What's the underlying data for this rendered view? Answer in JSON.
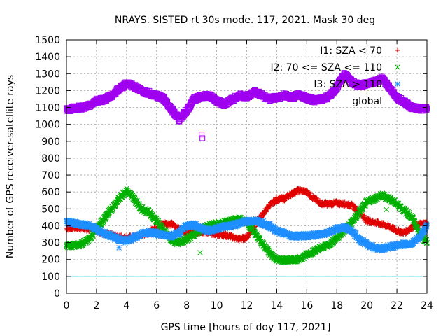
{
  "chart_data": {
    "type": "scatter",
    "title": "NRAYS. SISTED rt 30s mode. 117, 2021. Mask 30 deg",
    "xlabel": "GPS time [hours of doy 117, 2021]",
    "ylabel": "Number of GPS receiver-satellite rays",
    "xlim": [
      0,
      24
    ],
    "ylim": [
      0,
      1500
    ],
    "x_ticks": [
      "0",
      "2",
      "4",
      "6",
      "8",
      "10",
      "12",
      "14",
      "16",
      "18",
      "20",
      "22",
      "24"
    ],
    "y_ticks": [
      "0",
      "100",
      "200",
      "300",
      "400",
      "500",
      "600",
      "700",
      "800",
      "900",
      "1000",
      "1100",
      "1200",
      "1300",
      "1400",
      "1500"
    ],
    "grid": true,
    "legend_position": "top-right",
    "series": [
      {
        "name": "I1: SZA < 70",
        "marker": "+",
        "color": "#e00000",
        "x": [
          0,
          0.5,
          1,
          1.5,
          2,
          2.5,
          3,
          3.5,
          4,
          4.5,
          5,
          5.5,
          6,
          6.5,
          7,
          7.5,
          8,
          8.5,
          9,
          9.5,
          10,
          10.5,
          11,
          11.5,
          12,
          12.5,
          13,
          13.5,
          14,
          14.5,
          15,
          15.5,
          16,
          16.5,
          17,
          17.5,
          18,
          18.5,
          19,
          19.5,
          20,
          20.5,
          21,
          21.5,
          22,
          22.5,
          23,
          23.5,
          24
        ],
        "y": [
          385,
          390,
          385,
          380,
          370,
          355,
          345,
          335,
          330,
          335,
          345,
          360,
          390,
          415,
          410,
          380,
          360,
          360,
          365,
          360,
          350,
          345,
          335,
          320,
          330,
          400,
          460,
          520,
          555,
          560,
          590,
          610,
          600,
          560,
          530,
          530,
          535,
          530,
          520,
          480,
          430,
          420,
          410,
          395,
          370,
          360,
          390,
          410,
          415
        ]
      },
      {
        "name": "I2: 70 <= SZA <= 110",
        "marker": "x",
        "color": "#00b000",
        "x": [
          0,
          0.5,
          1,
          1.5,
          2,
          2.5,
          3,
          3.5,
          4,
          4.5,
          5,
          5.5,
          6,
          6.5,
          7,
          7.5,
          8,
          8.5,
          9,
          9.5,
          10,
          10.5,
          11,
          11.5,
          12,
          12.5,
          13,
          13.5,
          14,
          14.5,
          15,
          15.5,
          16,
          16.5,
          17,
          17.5,
          18,
          18.5,
          19,
          19.5,
          20,
          20.5,
          21,
          21.5,
          22,
          22.5,
          23,
          23.5,
          24
        ],
        "y": [
          280,
          285,
          290,
          320,
          380,
          440,
          500,
          560,
          610,
          560,
          500,
          480,
          430,
          370,
          310,
          300,
          320,
          350,
          380,
          400,
          410,
          420,
          430,
          440,
          420,
          360,
          300,
          240,
          200,
          195,
          200,
          200,
          230,
          250,
          270,
          290,
          330,
          370,
          420,
          480,
          540,
          560,
          580,
          560,
          530,
          490,
          450,
          360,
          300
        ]
      },
      {
        "name": "I3: SZA > 110",
        "marker": "*",
        "color": "#1f8fff",
        "x": [
          0,
          0.5,
          1,
          1.5,
          2,
          2.5,
          3,
          3.5,
          4,
          4.5,
          5,
          5.5,
          6,
          6.5,
          7,
          7.5,
          8,
          8.5,
          9,
          9.5,
          10,
          10.5,
          11,
          11.5,
          12,
          12.5,
          13,
          13.5,
          14,
          14.5,
          15,
          15.5,
          16,
          16.5,
          17,
          17.5,
          18,
          18.5,
          19,
          19.5,
          20,
          20.5,
          21,
          21.5,
          22,
          22.5,
          23,
          23.5,
          24
        ],
        "y": [
          420,
          415,
          410,
          400,
          380,
          355,
          340,
          320,
          310,
          330,
          350,
          360,
          355,
          345,
          340,
          360,
          400,
          405,
          385,
          370,
          380,
          395,
          400,
          415,
          425,
          430,
          420,
          400,
          370,
          355,
          340,
          340,
          340,
          345,
          350,
          365,
          380,
          390,
          370,
          320,
          290,
          270,
          265,
          275,
          285,
          290,
          295,
          330,
          400
        ]
      },
      {
        "name": "global",
        "marker": "square",
        "color": "#a000f0",
        "x": [
          0,
          0.5,
          1,
          1.5,
          2,
          2.5,
          3,
          3.5,
          4,
          4.5,
          5,
          5.5,
          6,
          6.5,
          7,
          7.5,
          8,
          8.5,
          9,
          9.5,
          10,
          10.5,
          11,
          11.5,
          12,
          12.5,
          13,
          13.5,
          14,
          14.5,
          15,
          15.5,
          16,
          16.5,
          17,
          17.5,
          18,
          18.5,
          19,
          19.5,
          20,
          20.5,
          21,
          21.5,
          22,
          22.5,
          23,
          23.5,
          24
        ],
        "y": [
          1085,
          1095,
          1100,
          1110,
          1140,
          1145,
          1170,
          1210,
          1240,
          1225,
          1200,
          1185,
          1170,
          1150,
          1090,
          1030,
          1080,
          1150,
          1165,
          1170,
          1140,
          1120,
          1145,
          1170,
          1165,
          1190,
          1175,
          1150,
          1160,
          1170,
          1160,
          1175,
          1155,
          1140,
          1150,
          1165,
          1220,
          1300,
          1250,
          1230,
          1240,
          1250,
          1270,
          1220,
          1160,
          1130,
          1100,
          1090,
          1095
        ]
      }
    ],
    "outliers": [
      {
        "series": "global",
        "x": 9.0,
        "y": 940
      },
      {
        "series": "global",
        "x": 9.05,
        "y": 918
      },
      {
        "series": "I3: SZA > 110",
        "x": 3.5,
        "y": 270
      },
      {
        "series": "I2: 70 <= SZA <= 110",
        "x": 8.9,
        "y": 240
      },
      {
        "series": "I2: 70 <= SZA <= 110",
        "x": 21.3,
        "y": 495
      }
    ],
    "threshold_line": {
      "y": 100,
      "color": "#40d8e0"
    }
  }
}
